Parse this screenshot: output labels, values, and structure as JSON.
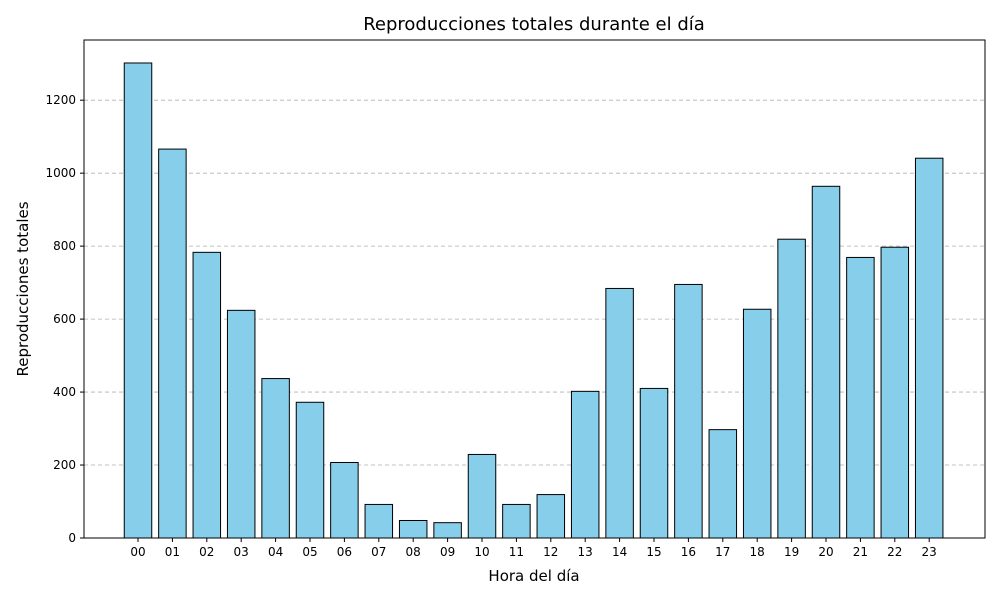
{
  "chart_data": {
    "type": "bar",
    "title": "Reproducciones totales durante el día",
    "xlabel": "Hora del día",
    "ylabel": "Reproducciones totales",
    "categories": [
      "00",
      "01",
      "02",
      "03",
      "04",
      "05",
      "06",
      "07",
      "08",
      "09",
      "10",
      "11",
      "12",
      "13",
      "14",
      "15",
      "16",
      "17",
      "18",
      "19",
      "20",
      "21",
      "22",
      "23"
    ],
    "values": [
      1302,
      1066,
      783,
      624,
      437,
      372,
      207,
      92,
      48,
      42,
      229,
      92,
      119,
      402,
      684,
      410,
      695,
      297,
      627,
      819,
      964,
      769,
      797,
      1041
    ],
    "ylim": [
      0,
      1365
    ],
    "yticks": [
      0,
      200,
      400,
      600,
      800,
      1000,
      1200
    ],
    "grid": "y-dashed",
    "bar_color": "#87ceeb",
    "edge_color": "#000000"
  }
}
